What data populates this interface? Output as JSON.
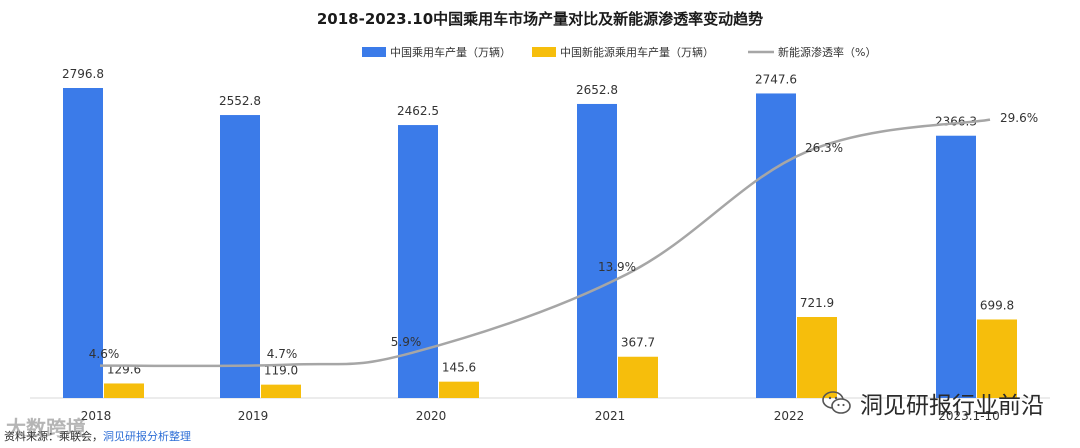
{
  "chart_data": {
    "type": "bar+line",
    "title": "2018-2023.10中国乘用车市场产量对比及新能源渗透率变动趋势",
    "categories": [
      "2018",
      "2019",
      "2020",
      "2021",
      "2022",
      "2023.1-10"
    ],
    "series": [
      {
        "name": "中国乘用车产量（万辆）",
        "type": "bar",
        "color": "#3b7be9",
        "values": [
          2796.8,
          2552.8,
          2462.5,
          2652.8,
          2747.6,
          2366.3
        ],
        "labels": [
          "2796.8",
          "2552.8",
          "2462.5",
          "2652.8",
          "2747.6",
          "2366.3"
        ]
      },
      {
        "name": "中国新能源乘用车产量（万辆）",
        "type": "bar",
        "color": "#f6be0c",
        "values": [
          129.6,
          119.0,
          145.6,
          367.7,
          721.9,
          699.8
        ],
        "labels": [
          "129.6",
          "119.0",
          "145.6",
          "367.7",
          "721.9",
          "699.8"
        ]
      },
      {
        "name": "新能源渗透率（%）",
        "type": "line",
        "color": "#a6a6a6",
        "values": [
          4.6,
          4.7,
          5.9,
          13.9,
          26.3,
          29.6
        ],
        "labels": [
          "4.6%",
          "4.7%",
          "5.9%",
          "13.9%",
          "26.3%",
          "29.6%"
        ]
      }
    ],
    "y_left_range": [
      0,
      2900
    ],
    "y_right_range": [
      0,
      35
    ],
    "legend_position": "top-center"
  },
  "source": {
    "prefix": "资料来源：",
    "org": "乘联会，",
    "note": "洞见研报分析整理"
  },
  "watermarks": {
    "left": "大数跨境",
    "right": "洞见研报行业前沿",
    "icon": "wechat-icon"
  }
}
